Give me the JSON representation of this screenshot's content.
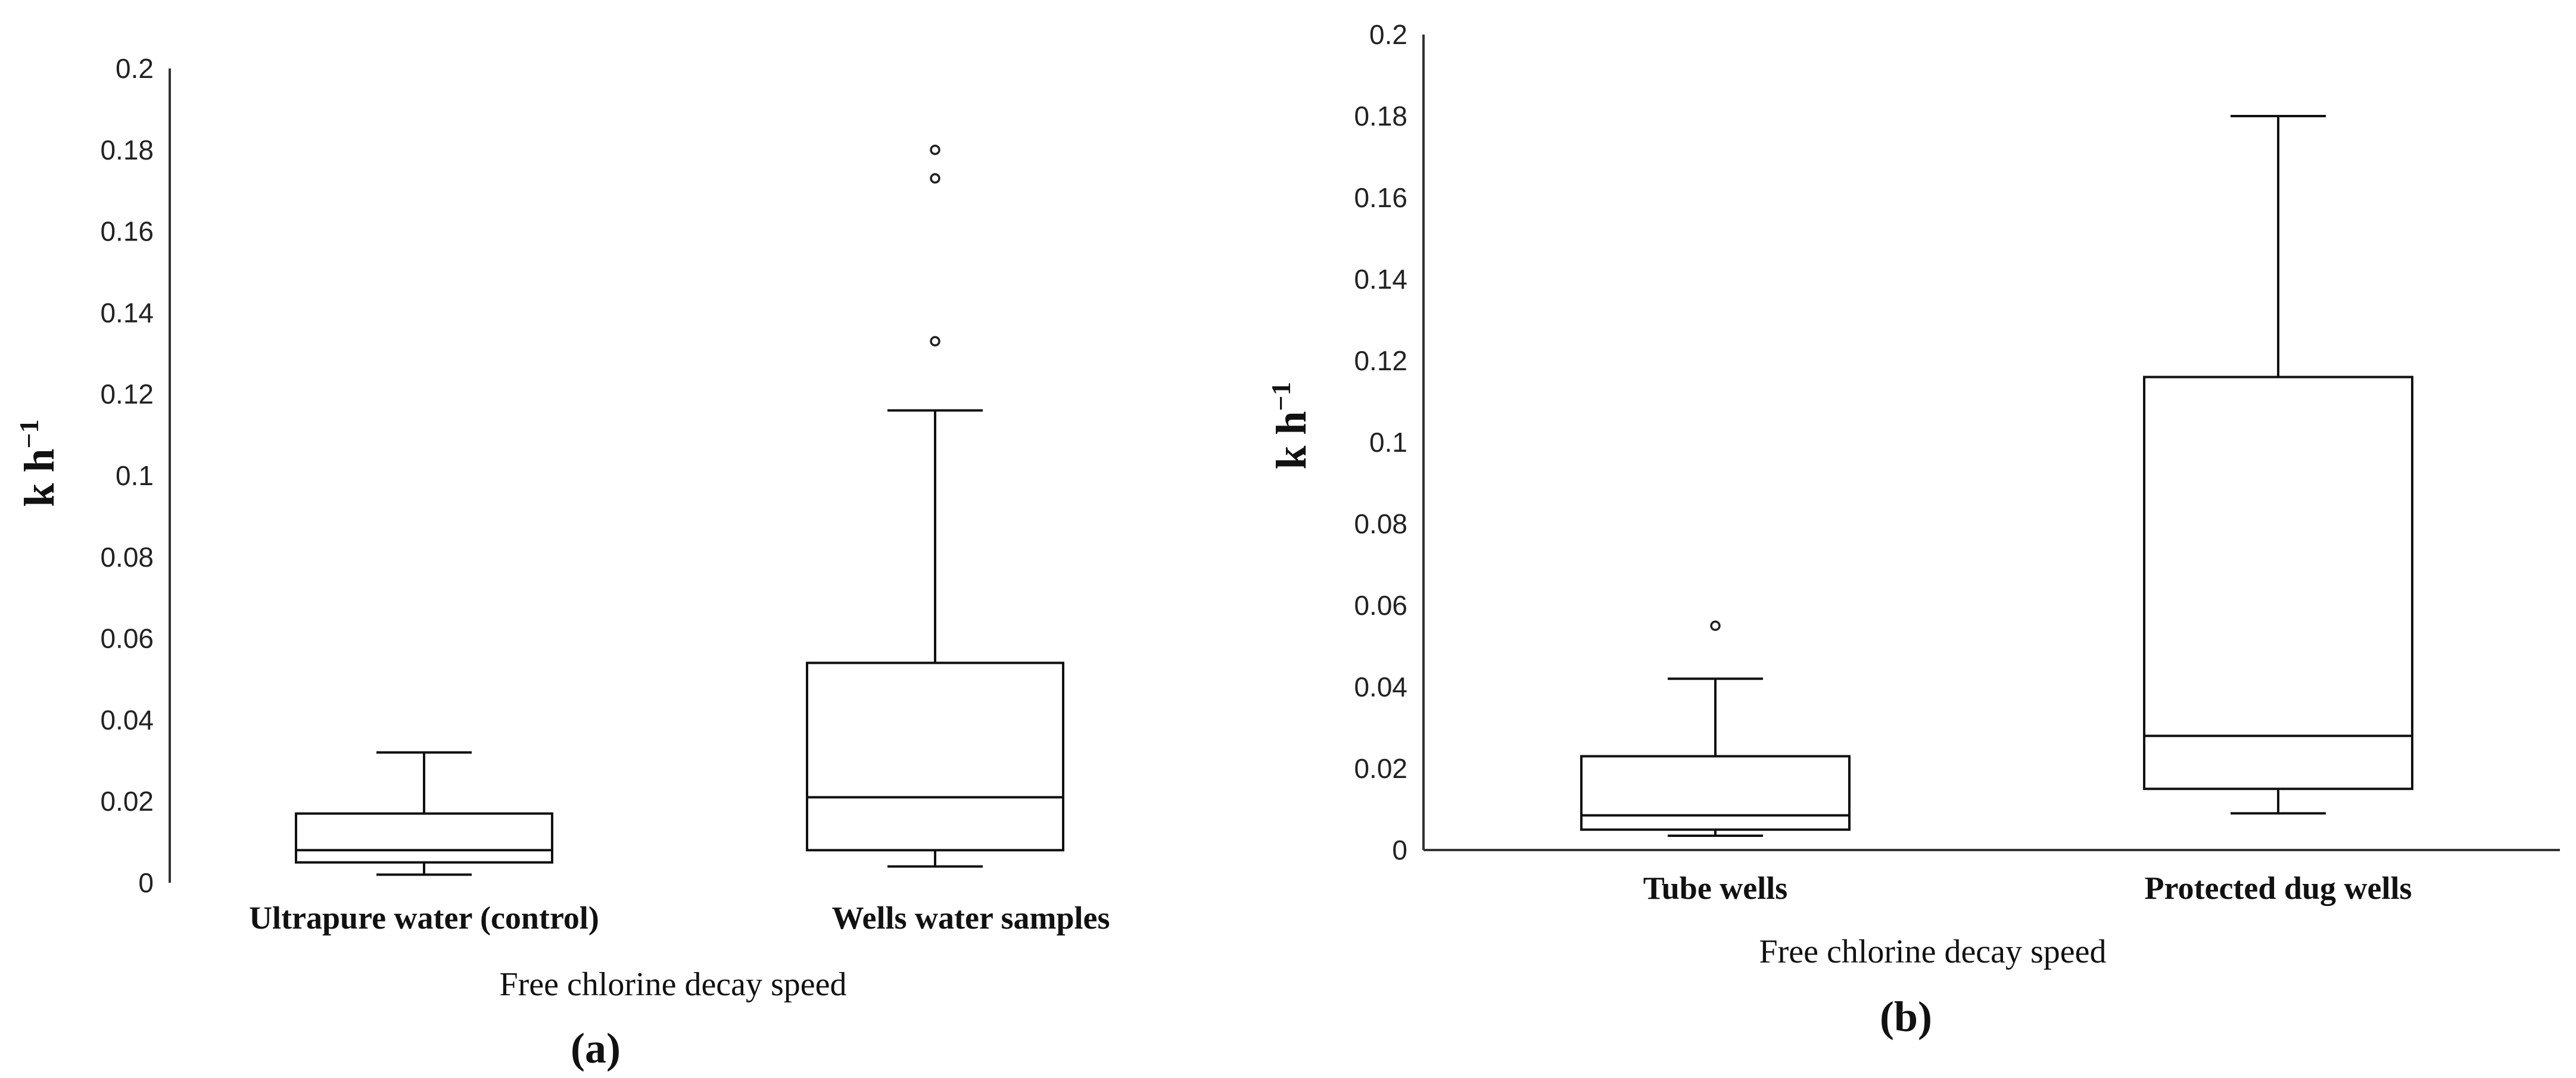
{
  "chart_data": [
    {
      "type": "box",
      "panel_label": "(a)",
      "xlabel": "Free chlorine decay speed",
      "ylabel_base": "k h",
      "ylabel_sup": "−1",
      "ylim": [
        0,
        0.2
      ],
      "yticks": [
        "0",
        "0.02",
        "0.04",
        "0.06",
        "0.08",
        "0.1",
        "0.12",
        "0.14",
        "0.16",
        "0.18",
        "0.2"
      ],
      "categories": [
        "Ultrapure water (control)",
        "Wells water samples"
      ],
      "boxes": [
        {
          "category": "Ultrapure water (control)",
          "whisker_low": 0.002,
          "q1": 0.005,
          "median": 0.008,
          "q3": 0.017,
          "whisker_high": 0.032,
          "outliers": []
        },
        {
          "category": "Wells water samples",
          "whisker_low": 0.004,
          "q1": 0.008,
          "median": 0.021,
          "q3": 0.054,
          "whisker_high": 0.116,
          "outliers": [
            0.133,
            0.173,
            0.18
          ]
        }
      ]
    },
    {
      "type": "box",
      "panel_label": "(b)",
      "xlabel": "Free chlorine decay speed",
      "ylabel_base": "k h",
      "ylabel_sup": "−1",
      "ylim": [
        0,
        0.2
      ],
      "yticks": [
        "0",
        "0.02",
        "0.04",
        "0.06",
        "0.08",
        "0.1",
        "0.12",
        "0.14",
        "0.16",
        "0.18",
        "0.2"
      ],
      "categories": [
        "Tube wells",
        "Protected dug wells"
      ],
      "boxes": [
        {
          "category": "Tube wells",
          "whisker_low": 0.0035,
          "q1": 0.005,
          "median": 0.0085,
          "q3": 0.023,
          "whisker_high": 0.042,
          "outliers": [
            0.055
          ]
        },
        {
          "category": "Protected dug wells",
          "whisker_low": 0.009,
          "q1": 0.015,
          "median": 0.028,
          "q3": 0.116,
          "whisker_high": 0.18,
          "outliers": []
        }
      ]
    }
  ]
}
